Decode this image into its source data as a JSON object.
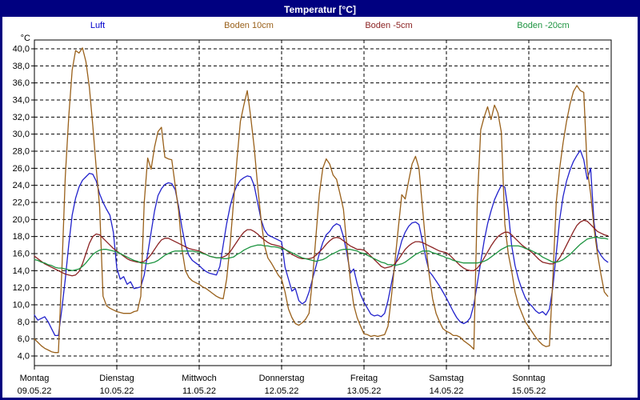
{
  "window": {
    "title": "Temperatur [°C]",
    "border_color": "#000080",
    "titlebar_bg": "#000080",
    "titlebar_text_color": "#ffffff"
  },
  "legend": [
    {
      "label": "Luft",
      "color": "#0000cc",
      "x_center": 119
    },
    {
      "label": "Boden 10cm",
      "color": "#99601a",
      "x_center": 308
    },
    {
      "label": "Boden -5cm",
      "color": "#8b2323",
      "x_center": 483
    },
    {
      "label": "Boden -20cm",
      "color": "#1d9440",
      "x_center": 676
    }
  ],
  "axis": {
    "unit_label": "°C",
    "y_tick_labels": [
      "40,0",
      "38,0",
      "36,0",
      "34,0",
      "32,0",
      "30,0",
      "28,0",
      "26,0",
      "24,0",
      "22,0",
      "20,0",
      "18,0",
      "16,0",
      "14,0",
      "12,0",
      "10,0",
      "8,0",
      "6,0",
      "4,0"
    ],
    "days": [
      {
        "name": "Montag",
        "date": "09.05.22"
      },
      {
        "name": "Dienstag",
        "date": "10.05.22"
      },
      {
        "name": "Mittwoch",
        "date": "11.05.22"
      },
      {
        "name": "Donnerstag",
        "date": "12.05.22"
      },
      {
        "name": "Freitag",
        "date": "13.05.22"
      },
      {
        "name": "Samstag",
        "date": "14.05.22"
      },
      {
        "name": "Sonntag",
        "date": "15.05.22"
      }
    ],
    "grid_color": "#000000"
  },
  "chart_data": {
    "type": "line",
    "title": "Temperatur [°C]",
    "xlabel": "",
    "ylabel": "°C",
    "x_unit": "hourly samples, Mon 09.05.22 00:00 - Sun 15.05.22 23:00",
    "x_hours_total": 168,
    "ylim": [
      4,
      40
    ],
    "y_step": 2,
    "grid": true,
    "legend_position": "top",
    "series": [
      {
        "name": "Luft",
        "color": "#2222cc",
        "values": [
          8.8,
          8.2,
          8.4,
          8.6,
          8.0,
          7.2,
          6.4,
          6.4,
          9.5,
          13.0,
          17.0,
          20.5,
          22.5,
          23.8,
          24.6,
          25.0,
          25.4,
          25.3,
          24.5,
          23.0,
          22.0,
          21.2,
          20.5,
          18.5,
          14.3,
          13.0,
          13.3,
          12.4,
          12.7,
          11.9,
          12.0,
          12.1,
          13.5,
          16.0,
          18.5,
          21.0,
          22.8,
          23.6,
          24.1,
          24.3,
          24.2,
          23.5,
          21.5,
          19.0,
          17.0,
          15.8,
          15.2,
          14.9,
          14.6,
          14.2,
          13.9,
          13.7,
          13.6,
          13.5,
          14.5,
          17.0,
          19.5,
          21.5,
          23.0,
          24.0,
          24.6,
          24.9,
          25.1,
          25.0,
          24.0,
          22.0,
          20.0,
          18.8,
          18.2,
          18.0,
          17.8,
          17.6,
          17.4,
          14.4,
          13.0,
          11.6,
          11.9,
          10.5,
          10.1,
          10.4,
          11.5,
          13.0,
          14.5,
          16.0,
          17.3,
          18.2,
          18.6,
          19.2,
          19.5,
          19.3,
          18.0,
          16.1,
          13.7,
          14.2,
          12.5,
          11.2,
          10.3,
          9.6,
          8.9,
          8.7,
          8.8,
          8.6,
          9.0,
          10.5,
          12.5,
          14.5,
          16.0,
          17.5,
          18.5,
          19.2,
          19.6,
          19.7,
          19.4,
          17.5,
          15.5,
          13.9,
          13.4,
          12.8,
          12.2,
          11.5,
          10.8,
          10.0,
          9.2,
          8.5,
          8.0,
          7.8,
          8.0,
          8.5,
          10.0,
          12.5,
          15.0,
          17.5,
          19.5,
          21.0,
          22.3,
          23.2,
          24.0,
          23.8,
          21.0,
          17.0,
          14.6,
          13.0,
          11.8,
          10.8,
          10.2,
          9.8,
          9.3,
          9.0,
          9.2,
          8.8,
          9.5,
          12.0,
          16.0,
          20.0,
          22.7,
          24.5,
          25.8,
          26.8,
          27.5,
          28.1,
          27.0,
          24.7,
          26.0,
          19.7,
          16.5,
          15.8,
          15.3,
          15.0
        ]
      },
      {
        "name": "Boden 10cm",
        "color": "#99601a",
        "values": [
          6.0,
          5.6,
          5.2,
          4.9,
          4.7,
          4.5,
          4.4,
          4.4,
          14.0,
          25.0,
          32.0,
          37.5,
          39.8,
          39.5,
          40.1,
          38.5,
          35.5,
          31.0,
          26.0,
          21.5,
          11.0,
          9.9,
          9.6,
          9.4,
          9.2,
          9.1,
          9.0,
          9.0,
          9.0,
          9.2,
          9.3,
          11.0,
          22.0,
          27.2,
          25.9,
          28.5,
          30.3,
          30.8,
          27.3,
          27.1,
          27.0,
          24.0,
          21.0,
          16.5,
          14.0,
          13.2,
          12.8,
          12.6,
          12.4,
          12.1,
          11.9,
          11.6,
          11.3,
          11.0,
          10.8,
          10.7,
          13.0,
          17.0,
          22.0,
          27.0,
          31.5,
          33.4,
          35.1,
          32.0,
          28.5,
          24.0,
          20.0,
          17.0,
          15.5,
          14.9,
          14.2,
          13.5,
          13.0,
          11.5,
          9.5,
          8.5,
          7.8,
          7.6,
          7.9,
          8.3,
          9.0,
          13.0,
          18.0,
          23.0,
          26.0,
          27.1,
          26.5,
          25.2,
          24.7,
          23.0,
          21.2,
          17.0,
          13.0,
          10.0,
          8.5,
          7.5,
          6.6,
          6.5,
          6.3,
          6.4,
          6.3,
          6.4,
          6.5,
          7.5,
          11.0,
          15.0,
          19.0,
          22.9,
          22.4,
          24.5,
          26.5,
          27.4,
          26.0,
          21.5,
          17.0,
          13.5,
          10.7,
          9.0,
          8.0,
          7.2,
          6.9,
          6.7,
          6.4,
          6.4,
          6.2,
          5.8,
          5.5,
          5.2,
          4.8,
          22.0,
          30.5,
          32.0,
          33.2,
          31.7,
          33.4,
          32.5,
          30.2,
          19.5,
          16.0,
          14.0,
          11.5,
          10.0,
          9.0,
          8.0,
          7.4,
          6.8,
          6.2,
          5.7,
          5.3,
          5.1,
          5.2,
          13.0,
          22.0,
          26.0,
          29.0,
          31.5,
          33.5,
          35.0,
          35.7,
          35.1,
          34.9,
          26.0,
          23.0,
          19.0,
          16.0,
          13.6,
          11.5,
          11.0
        ]
      },
      {
        "name": "Boden -5cm",
        "color": "#8b2323",
        "values": [
          15.7,
          15.4,
          15.1,
          14.8,
          14.6,
          14.4,
          14.2,
          14.0,
          13.8,
          13.6,
          13.5,
          13.4,
          13.5,
          13.9,
          14.8,
          16.0,
          17.2,
          18.0,
          18.3,
          18.2,
          17.8,
          17.4,
          17.0,
          16.6,
          16.3,
          16.0,
          15.7,
          15.4,
          15.2,
          15.1,
          15.0,
          15.0,
          15.1,
          15.4,
          15.9,
          16.5,
          17.1,
          17.6,
          17.8,
          17.8,
          17.6,
          17.4,
          17.2,
          17.0,
          16.8,
          16.6,
          16.5,
          16.4,
          16.3,
          16.1,
          15.9,
          15.7,
          15.6,
          15.5,
          15.5,
          15.6,
          15.8,
          16.2,
          16.8,
          17.4,
          18.0,
          18.5,
          18.8,
          18.8,
          18.6,
          18.3,
          17.9,
          17.6,
          17.3,
          17.1,
          17.0,
          16.9,
          16.8,
          16.5,
          16.2,
          15.9,
          15.7,
          15.5,
          15.4,
          15.4,
          15.4,
          15.5,
          15.8,
          16.2,
          16.6,
          17.1,
          17.5,
          17.8,
          17.9,
          17.8,
          17.5,
          17.2,
          16.9,
          16.7,
          16.5,
          16.5,
          16.4,
          16.1,
          15.7,
          15.3,
          14.9,
          14.5,
          14.3,
          14.4,
          14.5,
          14.8,
          15.3,
          15.9,
          16.5,
          16.9,
          17.2,
          17.4,
          17.4,
          17.3,
          17.1,
          16.9,
          16.7,
          16.5,
          16.3,
          16.2,
          16.1,
          15.8,
          15.4,
          15.0,
          14.6,
          14.3,
          14.1,
          14.0,
          14.0,
          14.3,
          14.8,
          15.5,
          16.2,
          16.9,
          17.5,
          18.0,
          18.3,
          18.5,
          18.5,
          18.2,
          17.8,
          17.4,
          17.0,
          16.7,
          16.4,
          16.1,
          15.7,
          15.3,
          15.0,
          14.9,
          14.8,
          14.8,
          15.0,
          15.5,
          16.2,
          17.0,
          17.8,
          18.6,
          19.3,
          19.7,
          19.9,
          19.8,
          19.4,
          19.0,
          18.6,
          18.4,
          18.2,
          18.1
        ]
      },
      {
        "name": "Boden -20cm",
        "color": "#1d9440",
        "values": [
          15.3,
          15.2,
          15.0,
          14.9,
          14.7,
          14.6,
          14.4,
          14.3,
          14.3,
          14.2,
          14.1,
          14.0,
          14.1,
          14.2,
          14.5,
          14.9,
          15.4,
          15.9,
          16.2,
          16.4,
          16.5,
          16.5,
          16.4,
          16.3,
          16.2,
          16.0,
          15.8,
          15.6,
          15.4,
          15.2,
          15.1,
          14.9,
          14.9,
          14.8,
          14.9,
          15.0,
          15.2,
          15.5,
          15.8,
          16.0,
          16.2,
          16.3,
          16.3,
          16.3,
          16.3,
          16.3,
          16.3,
          16.2,
          16.2,
          16.0,
          15.9,
          15.7,
          15.6,
          15.5,
          15.5,
          15.4,
          15.4,
          15.5,
          15.6,
          15.9,
          16.1,
          16.4,
          16.6,
          16.8,
          16.9,
          17.0,
          17.0,
          16.9,
          16.9,
          16.8,
          16.8,
          16.7,
          16.6,
          16.5,
          16.3,
          16.1,
          15.9,
          15.7,
          15.5,
          15.4,
          15.3,
          15.2,
          15.1,
          15.2,
          15.3,
          15.5,
          15.8,
          16.0,
          16.2,
          16.4,
          16.5,
          16.5,
          16.5,
          16.4,
          16.3,
          16.1,
          16.0,
          15.8,
          15.6,
          15.4,
          15.2,
          15.0,
          14.9,
          14.7,
          14.7,
          14.6,
          14.7,
          14.8,
          15.0,
          15.3,
          15.6,
          15.9,
          16.1,
          16.3,
          16.3,
          16.3,
          16.1,
          16.0,
          15.8,
          15.7,
          15.5,
          15.4,
          15.2,
          15.1,
          15.0,
          14.9,
          14.9,
          14.9,
          14.9,
          14.9,
          15.0,
          15.1,
          15.3,
          15.6,
          15.9,
          16.2,
          16.5,
          16.7,
          16.9,
          16.9,
          16.9,
          16.9,
          16.8,
          16.6,
          16.5,
          16.3,
          16.1,
          15.9,
          15.6,
          15.4,
          15.2,
          15.0,
          15.0,
          15.1,
          15.3,
          15.6,
          15.9,
          16.3,
          16.7,
          17.1,
          17.4,
          17.7,
          17.8,
          17.9,
          17.9,
          17.8,
          17.8,
          17.7
        ]
      }
    ]
  }
}
